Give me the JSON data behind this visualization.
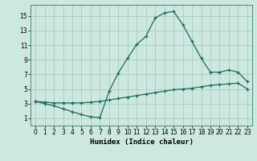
{
  "xlabel": "Humidex (Indice chaleur)",
  "ylabel": "",
  "bg_color": "#cde8e0",
  "grid_color": "#aaccbf",
  "line_color": "#1a6b5a",
  "x_hours": [
    0,
    1,
    2,
    3,
    4,
    5,
    6,
    7,
    8,
    9,
    10,
    11,
    12,
    13,
    14,
    15,
    16,
    17,
    18,
    19,
    20,
    21,
    22,
    23
  ],
  "line1_y": [
    3.3,
    3.0,
    2.7,
    2.3,
    1.9,
    1.5,
    1.2,
    1.1,
    4.7,
    7.2,
    9.2,
    11.1,
    12.2,
    14.7,
    15.4,
    15.6,
    13.8,
    11.5,
    9.2,
    7.3,
    7.3,
    7.6,
    7.3,
    6.0
  ],
  "line2_y": [
    3.3,
    3.2,
    3.1,
    3.1,
    3.1,
    3.1,
    3.2,
    3.3,
    3.5,
    3.7,
    3.9,
    4.1,
    4.3,
    4.5,
    4.7,
    4.9,
    5.0,
    5.1,
    5.3,
    5.5,
    5.6,
    5.7,
    5.8,
    5.0
  ],
  "xlim": [
    -0.5,
    23.5
  ],
  "ylim": [
    0,
    16.5
  ],
  "yticks": [
    1,
    3,
    5,
    7,
    9,
    11,
    13,
    15
  ],
  "xticks": [
    0,
    1,
    2,
    3,
    4,
    5,
    6,
    7,
    8,
    9,
    10,
    11,
    12,
    13,
    14,
    15,
    16,
    17,
    18,
    19,
    20,
    21,
    22,
    23
  ]
}
